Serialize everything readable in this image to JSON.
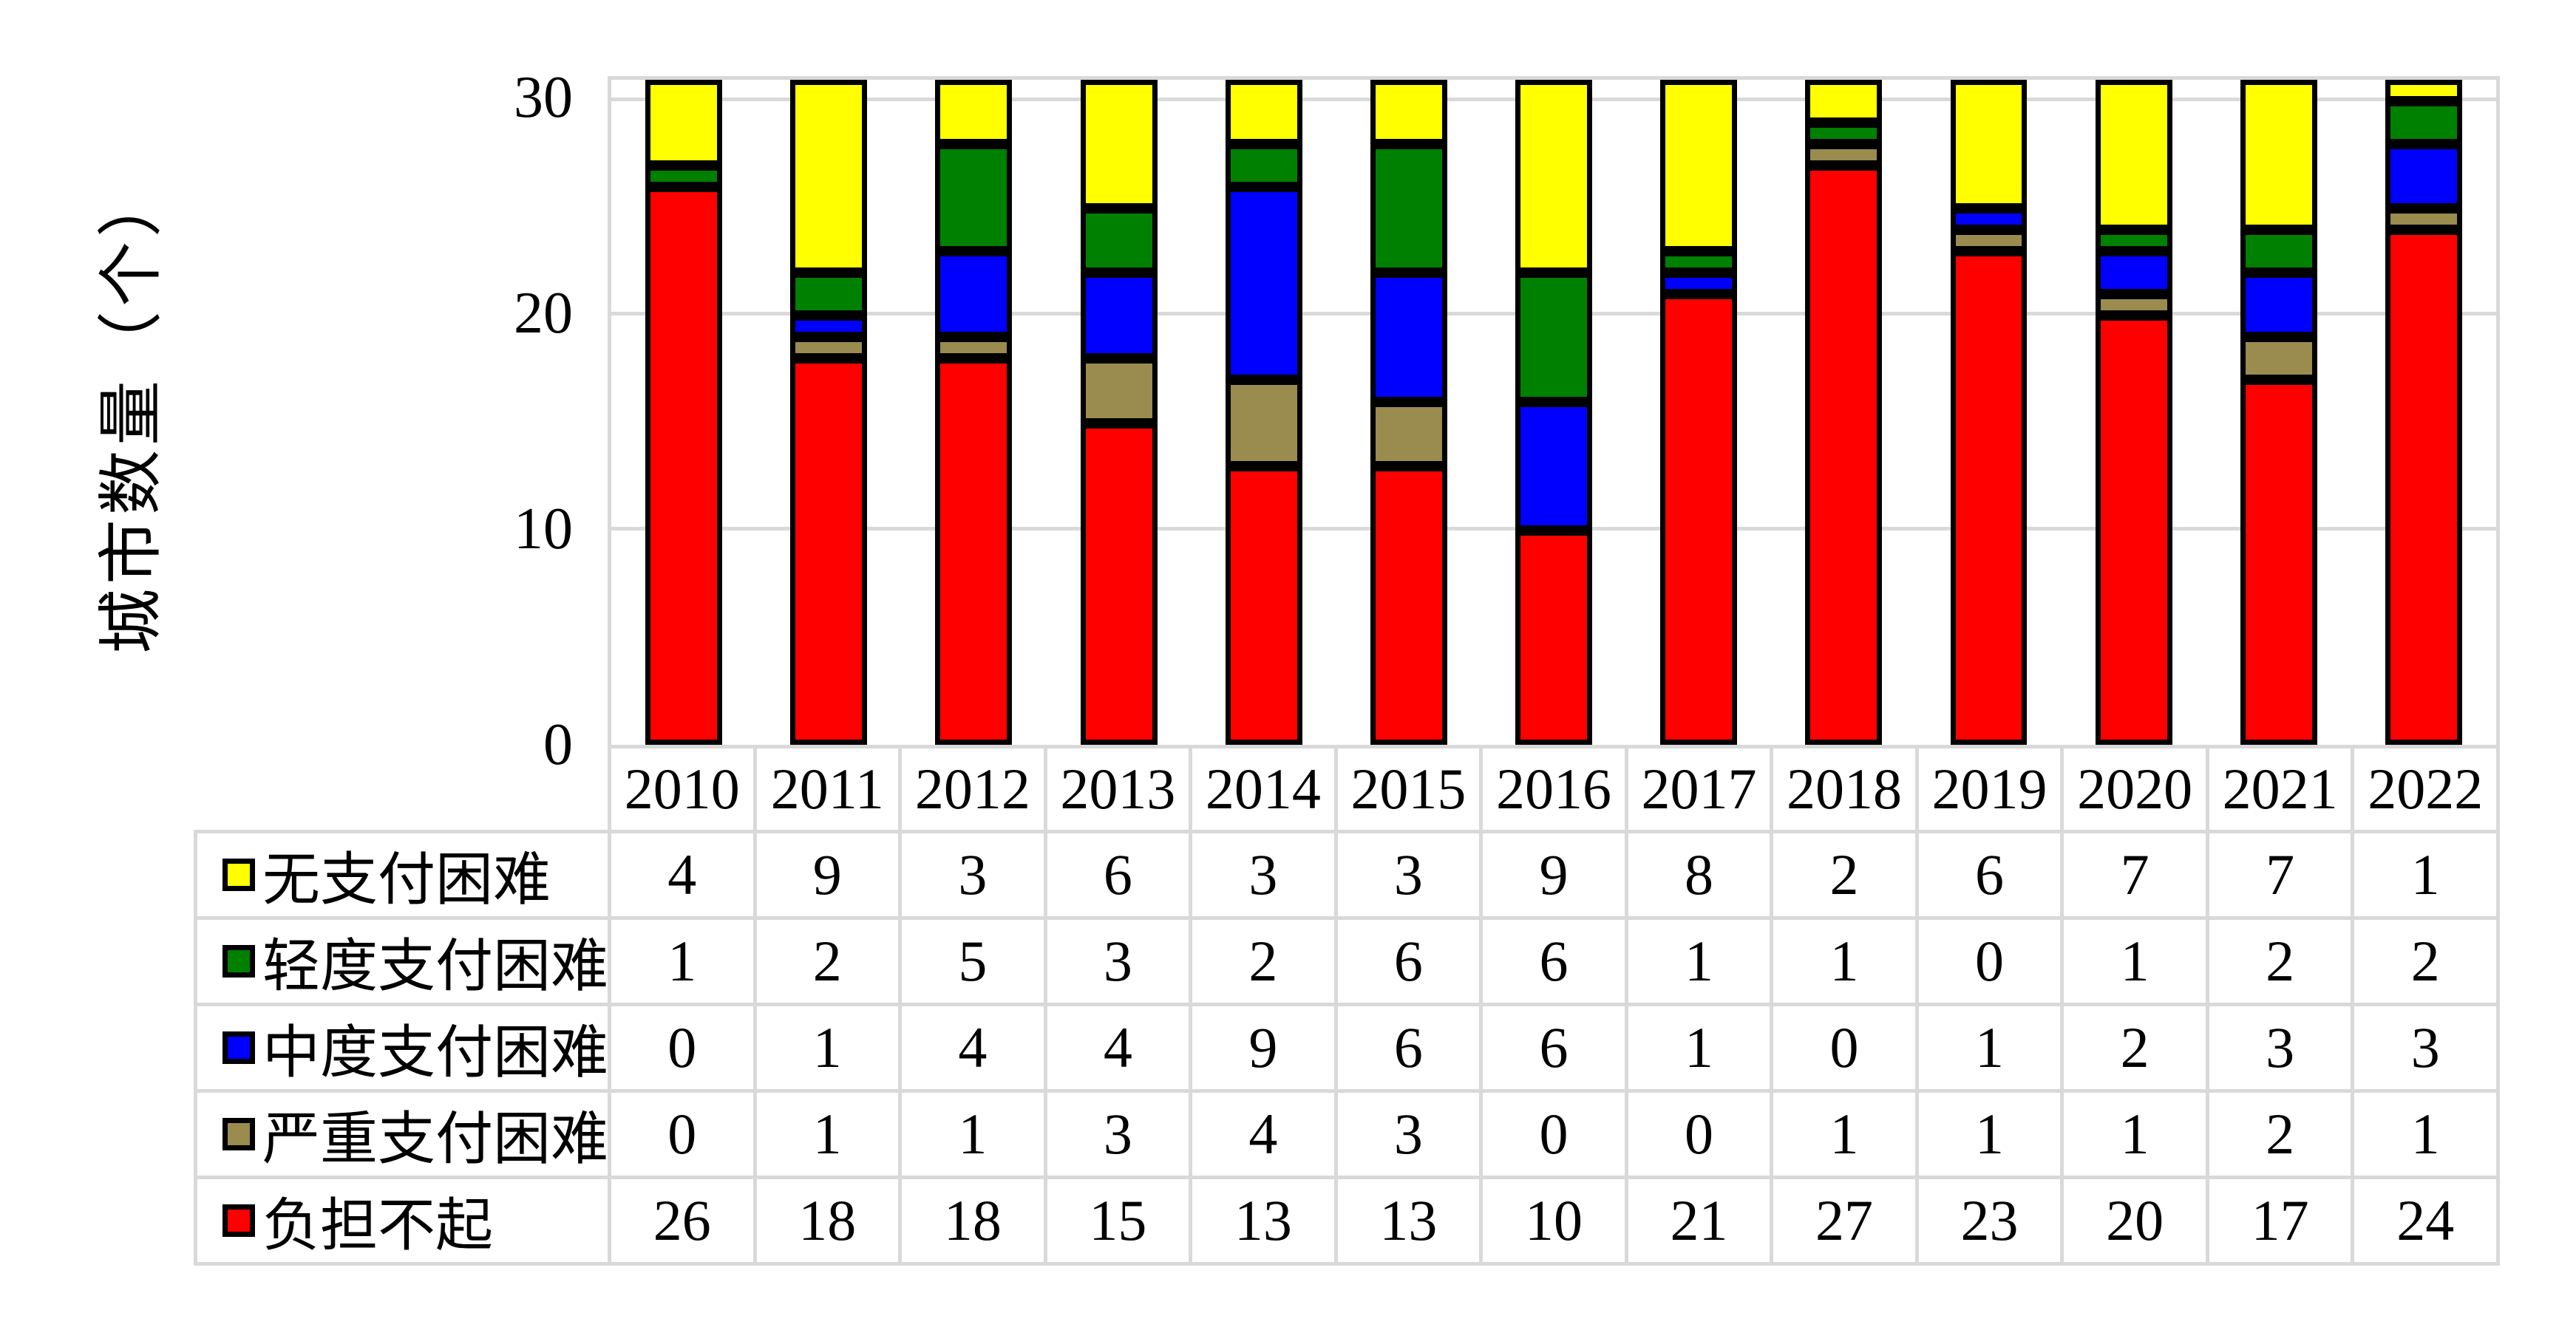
{
  "chart_data": {
    "type": "bar",
    "stacked": true,
    "title": "",
    "categories": [
      "2010",
      "2011",
      "2012",
      "2013",
      "2014",
      "2015",
      "2016",
      "2017",
      "2018",
      "2019",
      "2020",
      "2021",
      "2022"
    ],
    "series": [
      {
        "name": "无支付困难",
        "color": "#FFFF00",
        "values": [
          4,
          9,
          3,
          6,
          3,
          3,
          9,
          8,
          2,
          6,
          7,
          7,
          1
        ]
      },
      {
        "name": "轻度支付困难",
        "color": "#008000",
        "values": [
          1,
          2,
          5,
          3,
          2,
          6,
          6,
          1,
          1,
          0,
          1,
          2,
          2
        ]
      },
      {
        "name": "中度支付困难",
        "color": "#0000FF",
        "values": [
          0,
          1,
          4,
          4,
          9,
          6,
          6,
          1,
          0,
          1,
          2,
          3,
          3
        ]
      },
      {
        "name": "严重支付困难",
        "color": "#9A8B4E",
        "values": [
          0,
          1,
          1,
          3,
          4,
          3,
          0,
          0,
          1,
          1,
          1,
          2,
          1
        ]
      },
      {
        "name": "负担不起",
        "color": "#FF0000",
        "values": [
          26,
          18,
          18,
          15,
          13,
          13,
          10,
          21,
          27,
          23,
          20,
          17,
          24
        ]
      }
    ],
    "stack_order_bottom_to_top": [
      "负担不起",
      "严重支付困难",
      "中度支付困难",
      "轻度支付困难",
      "无支付困难"
    ],
    "xlabel": "",
    "ylabel": "城市数量（个）",
    "yticks": [
      0,
      10,
      20,
      30
    ],
    "ylim": [
      0,
      31
    ],
    "grid": true,
    "legend_position": "data-table-left-column",
    "colors": {
      "grid": "#D9D9D9",
      "bar_outline": "#000000",
      "table_border": "#D9D9D9",
      "background": "#FFFFFF",
      "text": "#000000"
    }
  }
}
